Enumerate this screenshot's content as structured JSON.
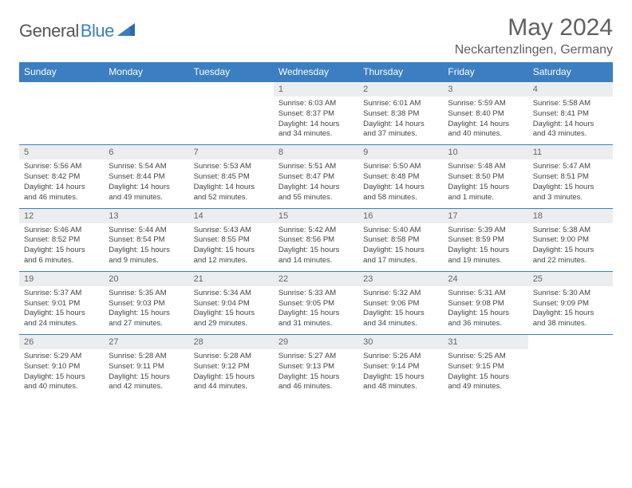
{
  "logo": {
    "text1": "General",
    "text2": "Blue"
  },
  "title": "May 2024",
  "location": "Neckartenzlingen, Germany",
  "colors": {
    "brand_blue": "#3b7ec2",
    "header_bg": "#3b7ec2",
    "header_text": "#ffffff",
    "daynum_bg": "#ecedef",
    "text_gray": "#606060",
    "border": "#3b7ec2"
  },
  "day_headers": [
    "Sunday",
    "Monday",
    "Tuesday",
    "Wednesday",
    "Thursday",
    "Friday",
    "Saturday"
  ],
  "weeks": [
    [
      {
        "n": "",
        "sr": "",
        "ss": "",
        "dl": ""
      },
      {
        "n": "",
        "sr": "",
        "ss": "",
        "dl": ""
      },
      {
        "n": "",
        "sr": "",
        "ss": "",
        "dl": ""
      },
      {
        "n": "1",
        "sr": "Sunrise: 6:03 AM",
        "ss": "Sunset: 8:37 PM",
        "dl": "Daylight: 14 hours and 34 minutes."
      },
      {
        "n": "2",
        "sr": "Sunrise: 6:01 AM",
        "ss": "Sunset: 8:38 PM",
        "dl": "Daylight: 14 hours and 37 minutes."
      },
      {
        "n": "3",
        "sr": "Sunrise: 5:59 AM",
        "ss": "Sunset: 8:40 PM",
        "dl": "Daylight: 14 hours and 40 minutes."
      },
      {
        "n": "4",
        "sr": "Sunrise: 5:58 AM",
        "ss": "Sunset: 8:41 PM",
        "dl": "Daylight: 14 hours and 43 minutes."
      }
    ],
    [
      {
        "n": "5",
        "sr": "Sunrise: 5:56 AM",
        "ss": "Sunset: 8:42 PM",
        "dl": "Daylight: 14 hours and 46 minutes."
      },
      {
        "n": "6",
        "sr": "Sunrise: 5:54 AM",
        "ss": "Sunset: 8:44 PM",
        "dl": "Daylight: 14 hours and 49 minutes."
      },
      {
        "n": "7",
        "sr": "Sunrise: 5:53 AM",
        "ss": "Sunset: 8:45 PM",
        "dl": "Daylight: 14 hours and 52 minutes."
      },
      {
        "n": "8",
        "sr": "Sunrise: 5:51 AM",
        "ss": "Sunset: 8:47 PM",
        "dl": "Daylight: 14 hours and 55 minutes."
      },
      {
        "n": "9",
        "sr": "Sunrise: 5:50 AM",
        "ss": "Sunset: 8:48 PM",
        "dl": "Daylight: 14 hours and 58 minutes."
      },
      {
        "n": "10",
        "sr": "Sunrise: 5:48 AM",
        "ss": "Sunset: 8:50 PM",
        "dl": "Daylight: 15 hours and 1 minute."
      },
      {
        "n": "11",
        "sr": "Sunrise: 5:47 AM",
        "ss": "Sunset: 8:51 PM",
        "dl": "Daylight: 15 hours and 3 minutes."
      }
    ],
    [
      {
        "n": "12",
        "sr": "Sunrise: 5:46 AM",
        "ss": "Sunset: 8:52 PM",
        "dl": "Daylight: 15 hours and 6 minutes."
      },
      {
        "n": "13",
        "sr": "Sunrise: 5:44 AM",
        "ss": "Sunset: 8:54 PM",
        "dl": "Daylight: 15 hours and 9 minutes."
      },
      {
        "n": "14",
        "sr": "Sunrise: 5:43 AM",
        "ss": "Sunset: 8:55 PM",
        "dl": "Daylight: 15 hours and 12 minutes."
      },
      {
        "n": "15",
        "sr": "Sunrise: 5:42 AM",
        "ss": "Sunset: 8:56 PM",
        "dl": "Daylight: 15 hours and 14 minutes."
      },
      {
        "n": "16",
        "sr": "Sunrise: 5:40 AM",
        "ss": "Sunset: 8:58 PM",
        "dl": "Daylight: 15 hours and 17 minutes."
      },
      {
        "n": "17",
        "sr": "Sunrise: 5:39 AM",
        "ss": "Sunset: 8:59 PM",
        "dl": "Daylight: 15 hours and 19 minutes."
      },
      {
        "n": "18",
        "sr": "Sunrise: 5:38 AM",
        "ss": "Sunset: 9:00 PM",
        "dl": "Daylight: 15 hours and 22 minutes."
      }
    ],
    [
      {
        "n": "19",
        "sr": "Sunrise: 5:37 AM",
        "ss": "Sunset: 9:01 PM",
        "dl": "Daylight: 15 hours and 24 minutes."
      },
      {
        "n": "20",
        "sr": "Sunrise: 5:35 AM",
        "ss": "Sunset: 9:03 PM",
        "dl": "Daylight: 15 hours and 27 minutes."
      },
      {
        "n": "21",
        "sr": "Sunrise: 5:34 AM",
        "ss": "Sunset: 9:04 PM",
        "dl": "Daylight: 15 hours and 29 minutes."
      },
      {
        "n": "22",
        "sr": "Sunrise: 5:33 AM",
        "ss": "Sunset: 9:05 PM",
        "dl": "Daylight: 15 hours and 31 minutes."
      },
      {
        "n": "23",
        "sr": "Sunrise: 5:32 AM",
        "ss": "Sunset: 9:06 PM",
        "dl": "Daylight: 15 hours and 34 minutes."
      },
      {
        "n": "24",
        "sr": "Sunrise: 5:31 AM",
        "ss": "Sunset: 9:08 PM",
        "dl": "Daylight: 15 hours and 36 minutes."
      },
      {
        "n": "25",
        "sr": "Sunrise: 5:30 AM",
        "ss": "Sunset: 9:09 PM",
        "dl": "Daylight: 15 hours and 38 minutes."
      }
    ],
    [
      {
        "n": "26",
        "sr": "Sunrise: 5:29 AM",
        "ss": "Sunset: 9:10 PM",
        "dl": "Daylight: 15 hours and 40 minutes."
      },
      {
        "n": "27",
        "sr": "Sunrise: 5:28 AM",
        "ss": "Sunset: 9:11 PM",
        "dl": "Daylight: 15 hours and 42 minutes."
      },
      {
        "n": "28",
        "sr": "Sunrise: 5:28 AM",
        "ss": "Sunset: 9:12 PM",
        "dl": "Daylight: 15 hours and 44 minutes."
      },
      {
        "n": "29",
        "sr": "Sunrise: 5:27 AM",
        "ss": "Sunset: 9:13 PM",
        "dl": "Daylight: 15 hours and 46 minutes."
      },
      {
        "n": "30",
        "sr": "Sunrise: 5:26 AM",
        "ss": "Sunset: 9:14 PM",
        "dl": "Daylight: 15 hours and 48 minutes."
      },
      {
        "n": "31",
        "sr": "Sunrise: 5:25 AM",
        "ss": "Sunset: 9:15 PM",
        "dl": "Daylight: 15 hours and 49 minutes."
      },
      {
        "n": "",
        "sr": "",
        "ss": "",
        "dl": ""
      }
    ]
  ]
}
